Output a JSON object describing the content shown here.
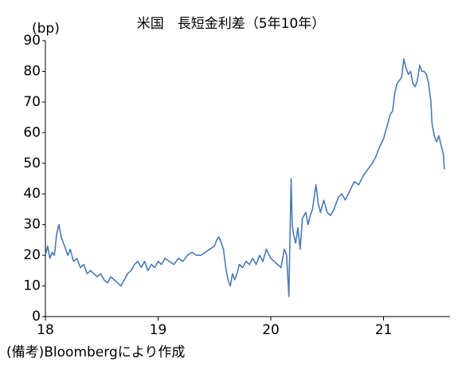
{
  "chart_data": {
    "type": "line",
    "title": "米国　長短金利差（5年10年）",
    "y_label": "(bp)",
    "note": "(備考)Bloombergにより作成",
    "x": [
      18.0,
      18.02,
      18.04,
      18.06,
      18.08,
      18.1,
      18.12,
      18.14,
      18.16,
      18.18,
      18.2,
      18.22,
      18.25,
      18.28,
      18.31,
      18.34,
      18.37,
      18.4,
      18.43,
      18.46,
      18.49,
      18.52,
      18.55,
      18.58,
      18.61,
      18.64,
      18.67,
      18.7,
      18.73,
      18.76,
      18.79,
      18.82,
      18.85,
      18.88,
      18.91,
      18.94,
      18.97,
      19.0,
      19.03,
      19.06,
      19.1,
      19.14,
      19.18,
      19.22,
      19.26,
      19.3,
      19.34,
      19.38,
      19.42,
      19.46,
      19.5,
      19.52,
      19.54,
      19.56,
      19.58,
      19.6,
      19.62,
      19.64,
      19.66,
      19.68,
      19.7,
      19.72,
      19.75,
      19.78,
      19.81,
      19.84,
      19.87,
      19.9,
      19.93,
      19.96,
      20.0,
      20.03,
      20.06,
      20.09,
      20.12,
      20.14,
      20.16,
      20.17,
      20.18,
      20.19,
      20.2,
      20.22,
      20.24,
      20.26,
      20.28,
      20.31,
      20.33,
      20.35,
      20.37,
      20.4,
      20.42,
      20.44,
      20.47,
      20.5,
      20.53,
      20.56,
      20.6,
      20.63,
      20.66,
      20.7,
      20.74,
      20.78,
      20.82,
      20.86,
      20.9,
      20.93,
      20.96,
      21.0,
      21.03,
      21.06,
      21.08,
      21.1,
      21.12,
      21.14,
      21.16,
      21.18,
      21.2,
      21.22,
      21.24,
      21.26,
      21.28,
      21.3,
      21.32,
      21.34,
      21.36,
      21.38,
      21.4,
      21.42,
      21.43,
      21.45,
      21.47,
      21.49,
      21.51,
      21.53,
      21.54
    ],
    "series": [
      {
        "color": "#4a7ab8",
        "values": [
          20,
          23,
          19,
          21,
          20,
          27,
          30,
          26,
          24,
          22,
          20,
          22,
          18,
          19,
          16,
          17,
          14,
          15,
          14,
          13,
          14,
          12,
          11,
          13,
          12,
          11,
          10,
          12,
          14,
          15,
          17,
          18,
          16,
          18,
          15,
          17,
          16,
          18,
          17,
          19,
          18,
          17,
          19,
          18,
          20,
          21,
          20,
          20,
          21,
          22,
          23,
          25,
          26,
          24,
          22,
          16,
          12,
          10,
          14,
          12,
          14,
          17,
          16,
          18,
          17,
          19,
          17,
          20,
          18,
          22,
          19,
          18,
          17,
          16,
          22,
          20,
          6.5,
          26,
          45,
          30,
          27,
          24,
          29,
          22,
          32,
          34,
          30,
          33,
          35,
          43,
          37,
          34,
          38,
          34,
          33,
          35,
          39,
          40,
          38,
          41,
          44,
          43,
          46,
          48,
          50,
          52,
          55,
          58,
          62,
          66,
          67,
          73,
          76,
          77,
          78,
          84,
          81,
          79,
          80,
          76,
          75,
          77,
          82,
          80,
          80,
          79,
          76,
          70,
          63,
          59,
          57,
          59,
          56,
          53,
          48
        ]
      }
    ],
    "xlim": [
      18,
      21.59
    ],
    "xticks": [
      18,
      19,
      20,
      21
    ],
    "ylim": [
      0,
      90
    ],
    "yticks": [
      0,
      10,
      20,
      30,
      40,
      50,
      60,
      70,
      80,
      90
    ]
  }
}
